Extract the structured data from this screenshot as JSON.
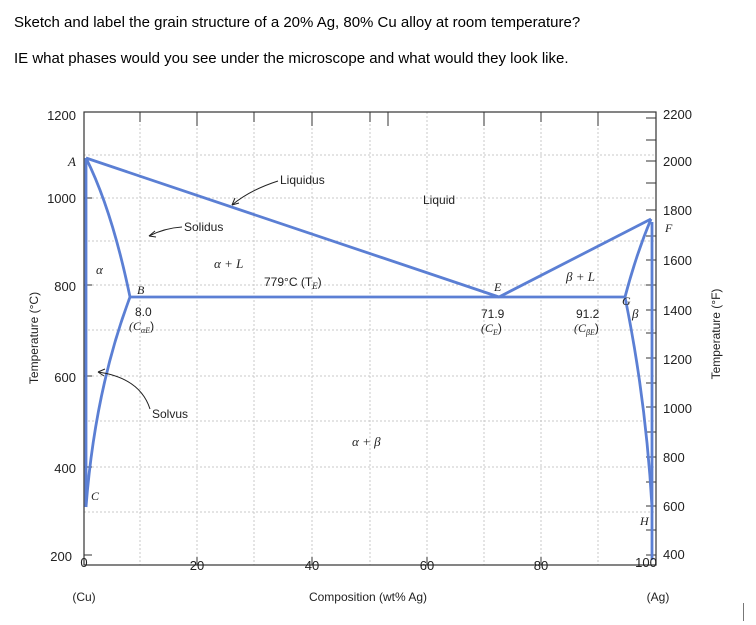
{
  "question": {
    "line1": "Sketch and label the grain structure of a 20% Ag, 80% Cu alloy at room temperature?",
    "line2": "IE what phases would you see under the microscope and what would they look like."
  },
  "diagram": {
    "left_axis": {
      "title": "Temperature (°C)",
      "ticks": [
        "1200",
        "1000",
        "800",
        "600",
        "400",
        "200"
      ]
    },
    "right_axis": {
      "title": "Temperature (°F)",
      "ticks": [
        "2200",
        "2000",
        "1800",
        "1600",
        "1400",
        "1200",
        "1000",
        "800",
        "600",
        "400"
      ]
    },
    "x_axis": {
      "title": "Composition (wt% Ag)",
      "ticks": [
        "0",
        "20",
        "40",
        "60",
        "80",
        "100"
      ],
      "left_end": "(Cu)",
      "right_end": "(Ag)"
    },
    "labels": {
      "point_a": "A",
      "liquidus": "Liquidus",
      "liquid": "Liquid",
      "solidus": "Solidus",
      "alpha": "α",
      "alpha_plus_l": "α + L",
      "point_b": "B",
      "eutectic_temp": "779°C (T",
      "eutectic_temp_sub": "E",
      "eutectic_temp_close": ")",
      "point_e": "E",
      "beta_plus_l": "β + L",
      "point_g": "G",
      "beta": "β",
      "point_f": "F",
      "alpha_comp": "8.0",
      "alpha_comp_label": "(C",
      "alpha_comp_sub": "αE",
      "alpha_comp_close": ")",
      "eutectic_comp": "71.9",
      "eutectic_comp_label": "(C",
      "eutectic_comp_sub": "E",
      "eutectic_comp_close": ")",
      "beta_comp": "91.2",
      "beta_comp_label": "(C",
      "beta_comp_sub": "βE",
      "beta_comp_close": ")",
      "solvus": "Solvus",
      "alpha_plus_beta": "α + β",
      "point_c": "C",
      "point_h": "H"
    },
    "colors": {
      "phase_line": "#5b7fd4",
      "grid": "#c9c9c9",
      "frame": "#333333"
    }
  }
}
